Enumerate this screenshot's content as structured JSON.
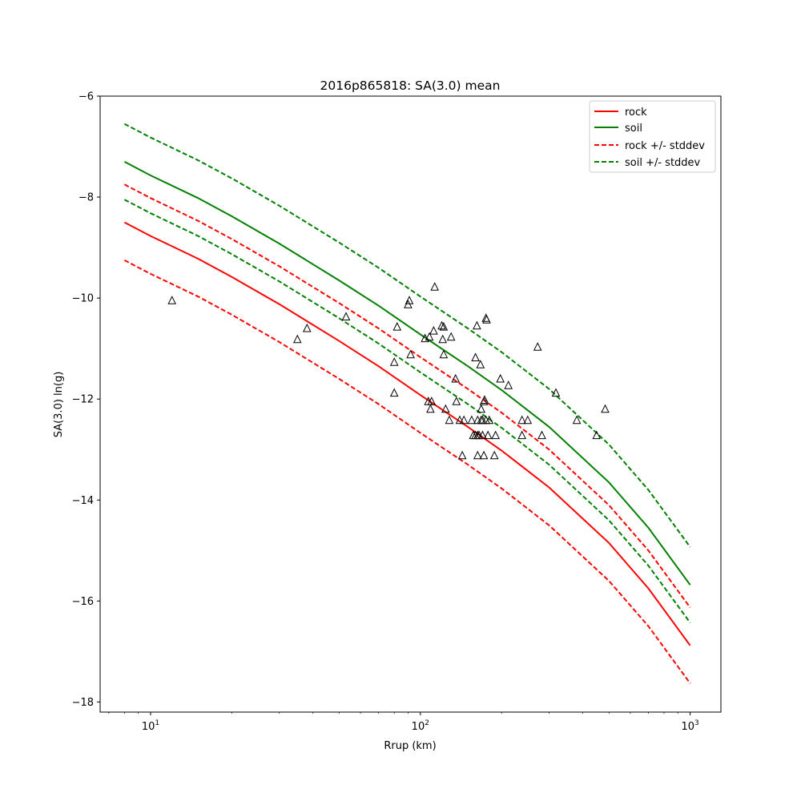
{
  "chart_data": {
    "type": "scatter",
    "title": "2016p865818: SA(3.0) mean",
    "xlabel": "Rrup (km)",
    "ylabel": "SA(3.0) ln(g)",
    "xscale": "log",
    "xlim": [
      6.5,
      1300
    ],
    "ylim": [
      -18.2,
      -6
    ],
    "x_ticks": [
      10,
      100,
      1000
    ],
    "x_tick_labels": [
      {
        "base": "10",
        "exp": "1"
      },
      {
        "base": "10",
        "exp": "2"
      },
      {
        "base": "10",
        "exp": "3"
      }
    ],
    "y_ticks": [
      -18,
      -16,
      -14,
      -12,
      -10,
      -8,
      -6
    ],
    "y_tick_labels": [
      "−18",
      "−16",
      "−14",
      "−12",
      "−10",
      "−8",
      "−6"
    ],
    "grid": false,
    "legend_position": "top-right",
    "series": [
      {
        "name": "rock",
        "color": "#ff0000",
        "style": "solid",
        "x": [
          8,
          10,
          15,
          20,
          30,
          50,
          70,
          100,
          150,
          200,
          300,
          500,
          700,
          1000
        ],
        "y": [
          -8.5,
          -8.77,
          -9.22,
          -9.58,
          -10.12,
          -10.85,
          -11.35,
          -11.92,
          -12.55,
          -13.02,
          -13.75,
          -14.85,
          -15.75,
          -16.88
        ]
      },
      {
        "name": "soil",
        "color": "#008000",
        "style": "solid",
        "x": [
          8,
          10,
          15,
          20,
          30,
          50,
          70,
          100,
          150,
          200,
          300,
          500,
          700,
          1000
        ],
        "y": [
          -7.3,
          -7.57,
          -8.02,
          -8.38,
          -8.92,
          -9.65,
          -10.15,
          -10.72,
          -11.35,
          -11.82,
          -12.55,
          -13.65,
          -14.55,
          -15.68
        ]
      },
      {
        "name": "rock +/- stddev",
        "color": "#ff0000",
        "style": "dashed",
        "x": [
          8,
          10,
          15,
          20,
          30,
          50,
          70,
          100,
          150,
          200,
          300,
          500,
          700,
          1000
        ],
        "y": [
          -7.75,
          -8.02,
          -8.47,
          -8.83,
          -9.37,
          -10.1,
          -10.6,
          -11.17,
          -11.8,
          -12.27,
          -13.0,
          -14.1,
          -15.0,
          -16.13
        ]
      },
      {
        "name": "",
        "color": "#ff0000",
        "style": "dashed",
        "x": [
          8,
          10,
          15,
          20,
          30,
          50,
          70,
          100,
          150,
          200,
          300,
          500,
          700,
          1000
        ],
        "y": [
          -9.25,
          -9.52,
          -9.97,
          -10.33,
          -10.87,
          -11.6,
          -12.1,
          -12.67,
          -13.3,
          -13.77,
          -14.5,
          -15.6,
          -16.5,
          -17.63
        ]
      },
      {
        "name": "soil +/- stddev",
        "color": "#008000",
        "style": "dashed",
        "x": [
          8,
          10,
          15,
          20,
          30,
          50,
          70,
          100,
          150,
          200,
          300,
          500,
          700,
          1000
        ],
        "y": [
          -6.55,
          -6.82,
          -7.27,
          -7.63,
          -8.17,
          -8.9,
          -9.4,
          -9.97,
          -10.6,
          -11.07,
          -11.8,
          -12.9,
          -13.8,
          -14.93
        ]
      },
      {
        "name": "",
        "color": "#008000",
        "style": "dashed",
        "x": [
          8,
          10,
          15,
          20,
          30,
          50,
          70,
          100,
          150,
          200,
          300,
          500,
          700,
          1000
        ],
        "y": [
          -8.05,
          -8.32,
          -8.77,
          -9.13,
          -9.67,
          -10.4,
          -10.9,
          -11.47,
          -12.1,
          -12.57,
          -13.3,
          -14.4,
          -15.3,
          -16.43
        ]
      }
    ],
    "observations": {
      "marker": "open-triangle",
      "color": "#000000",
      "points": [
        [
          12,
          -10.05
        ],
        [
          35,
          -10.82
        ],
        [
          38,
          -10.6
        ],
        [
          53,
          -10.37
        ],
        [
          80,
          -11.27
        ],
        [
          80,
          -11.88
        ],
        [
          82,
          -10.57
        ],
        [
          90,
          -10.13
        ],
        [
          91,
          -10.05
        ],
        [
          92,
          -11.12
        ],
        [
          104,
          -10.8
        ],
        [
          107,
          -12.05
        ],
        [
          108,
          -10.77
        ],
        [
          109,
          -12.2
        ],
        [
          110,
          -12.05
        ],
        [
          112,
          -10.65
        ],
        [
          113,
          -9.78
        ],
        [
          120,
          -10.55
        ],
        [
          121,
          -10.82
        ],
        [
          122,
          -10.57
        ],
        [
          122,
          -11.12
        ],
        [
          124,
          -12.2
        ],
        [
          128,
          -12.42
        ],
        [
          130,
          -10.77
        ],
        [
          135,
          -11.6
        ],
        [
          136,
          -12.05
        ],
        [
          140,
          -12.42
        ],
        [
          143,
          -13.12
        ],
        [
          145,
          -12.42
        ],
        [
          155,
          -12.42
        ],
        [
          157,
          -12.72
        ],
        [
          160,
          -11.18
        ],
        [
          160,
          -12.72
        ],
        [
          162,
          -10.55
        ],
        [
          163,
          -12.72
        ],
        [
          163,
          -12.42
        ],
        [
          163,
          -13.12
        ],
        [
          165,
          -12.72
        ],
        [
          167,
          -11.32
        ],
        [
          168,
          -12.2
        ],
        [
          168,
          -12.42
        ],
        [
          170,
          -12.42
        ],
        [
          170,
          -12.72
        ],
        [
          172,
          -12.05
        ],
        [
          172,
          -13.12
        ],
        [
          173,
          -12.02
        ],
        [
          175,
          -12.42
        ],
        [
          175,
          -10.4
        ],
        [
          176,
          -10.43
        ],
        [
          178,
          -12.72
        ],
        [
          180,
          -12.42
        ],
        [
          188,
          -13.12
        ],
        [
          190,
          -12.72
        ],
        [
          198,
          -11.6
        ],
        [
          212,
          -11.73
        ],
        [
          238,
          -12.42
        ],
        [
          238,
          -12.72
        ],
        [
          250,
          -12.42
        ],
        [
          272,
          -10.97
        ],
        [
          282,
          -12.72
        ],
        [
          318,
          -11.88
        ],
        [
          380,
          -12.42
        ],
        [
          450,
          -12.72
        ],
        [
          484,
          -12.2
        ]
      ]
    }
  }
}
